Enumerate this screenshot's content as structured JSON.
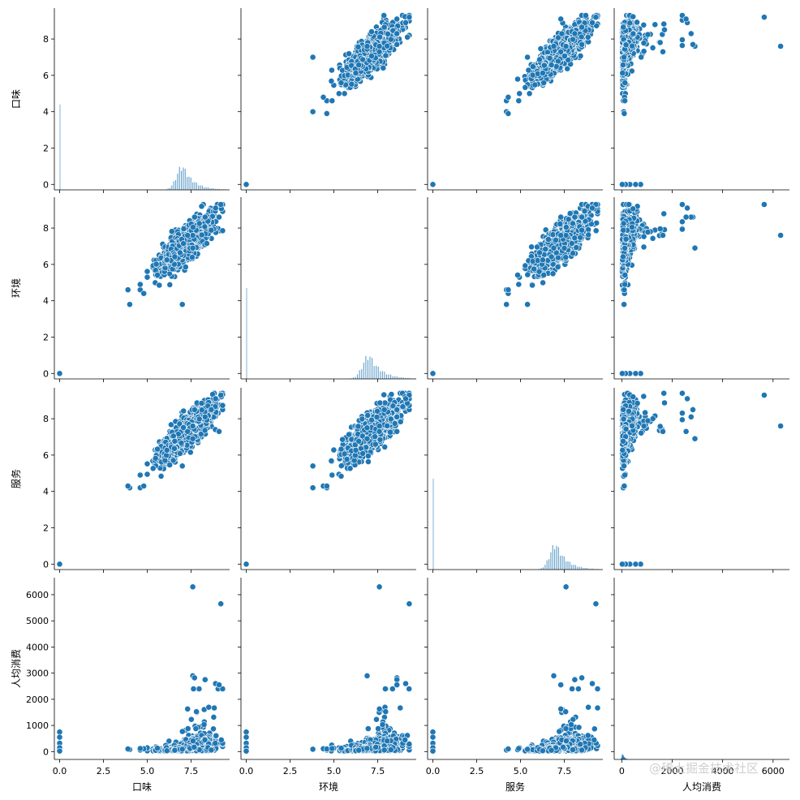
{
  "chart_data": {
    "type": "scatter",
    "title": "",
    "variables": [
      "口味",
      "环境",
      "服务",
      "人均消费"
    ],
    "marker_color": "#1f77b4",
    "watermark": "@稀土掘金技术社区",
    "axes": {
      "口味": {
        "range": [
          -0.3,
          9.7
        ],
        "ticks": [
          0,
          2,
          4,
          6,
          8
        ],
        "xticks": [
          0.0,
          2.5,
          5.0,
          7.5
        ],
        "xtick_labels": [
          "0.0",
          "2.5",
          "5.0",
          "7.5"
        ]
      },
      "环境": {
        "range": [
          -0.3,
          9.7
        ],
        "ticks": [
          0,
          2,
          4,
          6,
          8
        ],
        "xticks": [
          0.0,
          2.5,
          5.0,
          7.5
        ],
        "xtick_labels": [
          "0.0",
          "2.5",
          "5.0",
          "7.5"
        ]
      },
      "服务": {
        "range": [
          -0.3,
          9.7
        ],
        "ticks": [
          0,
          2,
          4,
          6,
          8
        ],
        "xticks": [
          0.0,
          2.5,
          5.0,
          7.5
        ],
        "xtick_labels": [
          "0.0",
          "2.5",
          "5.0",
          "7.5"
        ]
      },
      "人均消费": {
        "range": [
          -300,
          6650
        ],
        "ticks": [
          0,
          1000,
          2000,
          3000,
          4000,
          5000,
          6000
        ],
        "xticks": [
          0,
          2000,
          4000,
          6000
        ],
        "xtick_labels": [
          "0",
          "2000",
          "4000",
          "6000"
        ]
      }
    },
    "row_labels": [
      "口味",
      "环境",
      "服务",
      "人均消费"
    ],
    "col_labels": [
      "口味",
      "环境",
      "服务",
      "人均消费"
    ],
    "histograms": {
      "口味": {
        "zero_height_frac": 0.47,
        "peak_value": 7.0,
        "peak_height_frac": 0.15,
        "spread": 0.55
      },
      "环境": {
        "zero_height_frac": 0.5,
        "peak_value": 7.0,
        "peak_height_frac": 0.15,
        "spread": 0.6
      },
      "服务": {
        "zero_height_frac": 0.5,
        "peak_value": 7.0,
        "peak_height_frac": 0.16,
        "spread": 0.55
      },
      "人均消费": {
        "zero_height_frac": 0.03,
        "peak_value": 30,
        "peak_height_frac": 0.03,
        "spread": 60
      }
    },
    "cloud": {
      "taste_range": [
        5.0,
        9.3
      ],
      "env_range": [
        4.2,
        9.3
      ],
      "service_range": [
        4.2,
        9.4
      ],
      "price_main_range": [
        0,
        600
      ],
      "correlation": "strong positive between 口味, 环境, 服务"
    },
    "outliers": [
      {
        "口味": 0.0,
        "环境": 0.0,
        "服务": 0.0,
        "人均消费": 750
      },
      {
        "口味": 0.0,
        "环境": 0.0,
        "服务": 0.0,
        "人均消费": 550
      },
      {
        "口味": 0.0,
        "环境": 0.0,
        "服务": 0.0,
        "人均消费": 320
      },
      {
        "口味": 0.0,
        "环境": 0.0,
        "服务": 0.0,
        "人均消费": 150
      },
      {
        "口味": 0.0,
        "环境": 0.0,
        "服务": 0.0,
        "人均消费": 20
      },
      {
        "口味": 7.6,
        "环境": 7.6,
        "服务": 7.6,
        "人均消费": 6300
      },
      {
        "口味": 9.2,
        "环境": 9.3,
        "服务": 9.3,
        "人均消费": 5650
      },
      {
        "口味": 7.6,
        "环境": 6.9,
        "服务": 6.9,
        "人均消费": 2900
      },
      {
        "口味": 7.7,
        "环境": 8.6,
        "服务": 8.5,
        "人均消费": 2820
      },
      {
        "口味": 8.3,
        "环境": 8.6,
        "服务": 8.1,
        "人均消费": 2750
      },
      {
        "口味": 8.9,
        "环境": 9.1,
        "服务": 9.1,
        "人均消费": 2600
      },
      {
        "口味": 9.1,
        "环境": 8.6,
        "服务": 7.3,
        "人均消费": 2550
      },
      {
        "口味": 7.3,
        "环境": 7.6,
        "服务": 7.3,
        "人均消费": 1630
      },
      {
        "口味": 4.0,
        "环境": 3.8,
        "服务": 4.2,
        "人均消费": 80
      },
      {
        "口味": 4.6,
        "环境": 4.6,
        "服务": 4.2,
        "人均消费": 60
      },
      {
        "口味": 4.8,
        "环境": 4.4,
        "服务": 4.3,
        "人均消费": 110
      },
      {
        "口味": 7.0,
        "环境": 3.8,
        "服务": 5.4,
        "人均消费": 90
      },
      {
        "口味": 3.9,
        "环境": 4.6,
        "服务": 4.3,
        "人均消费": 100
      },
      {
        "口味": 4.6,
        "环境": 4.9,
        "服务": 4.9,
        "人均消费": 120
      }
    ]
  }
}
